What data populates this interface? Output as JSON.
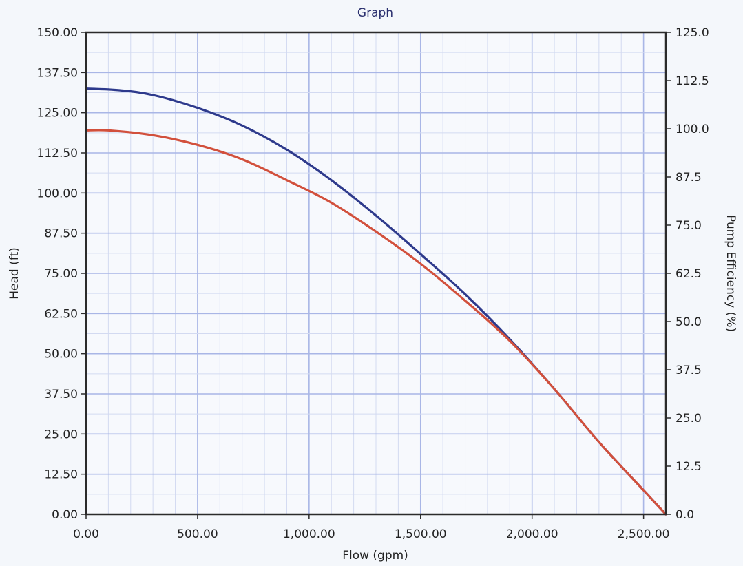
{
  "chart_data": {
    "type": "line",
    "title": "Graph",
    "xlabel": "Flow (gpm)",
    "ylabel": "Head (ft)",
    "y2label": "Pump Efficiency (%)",
    "xlim": [
      0,
      2600
    ],
    "ylim": [
      0,
      150
    ],
    "y2lim": [
      0,
      125
    ],
    "grid": true,
    "x_ticks": [
      0,
      500,
      1000,
      1500,
      2000,
      2500
    ],
    "x_tick_labels": [
      "0.00",
      "500.00",
      "1,000.00",
      "1,500.00",
      "2,000.00",
      "2,500.00"
    ],
    "y_ticks": [
      0,
      12.5,
      25,
      37.5,
      50,
      62.5,
      75,
      87.5,
      100,
      112.5,
      125,
      137.5,
      150
    ],
    "y_tick_labels": [
      "0.00",
      "12.50",
      "25.00",
      "37.50",
      "50.00",
      "62.50",
      "75.00",
      "87.50",
      "100.00",
      "112.50",
      "125.00",
      "137.50",
      "150.00"
    ],
    "y2_ticks": [
      0,
      12.5,
      25,
      37.5,
      50,
      62.5,
      75,
      87.5,
      100,
      112.5,
      125
    ],
    "y2_tick_labels": [
      "0.0",
      "12.5",
      "25.0",
      "37.5",
      "50.0",
      "62.5",
      "75.0",
      "87.5",
      "100.0",
      "112.5",
      "125.0"
    ],
    "series": [
      {
        "color": "#2e3a8c",
        "x": [
          0,
          150,
          300,
          500,
          700,
          900,
          1100,
          1300,
          1500,
          1700,
          1900,
          2100,
          2300,
          2500,
          2600
        ],
        "y": [
          132.5,
          132,
          130.5,
          126.5,
          121,
          113.5,
          104,
          93,
          81,
          68.5,
          54.5,
          39,
          22.5,
          7.5,
          0
        ]
      },
      {
        "color": "#d2503c",
        "x": [
          0,
          100,
          300,
          500,
          700,
          900,
          1100,
          1300,
          1500,
          1700,
          1900,
          2100,
          2300,
          2500,
          2600
        ],
        "y": [
          119.5,
          119.5,
          118,
          115,
          110.5,
          104,
          97,
          88,
          78,
          66.5,
          54,
          39,
          22.5,
          7.5,
          0
        ]
      }
    ]
  }
}
